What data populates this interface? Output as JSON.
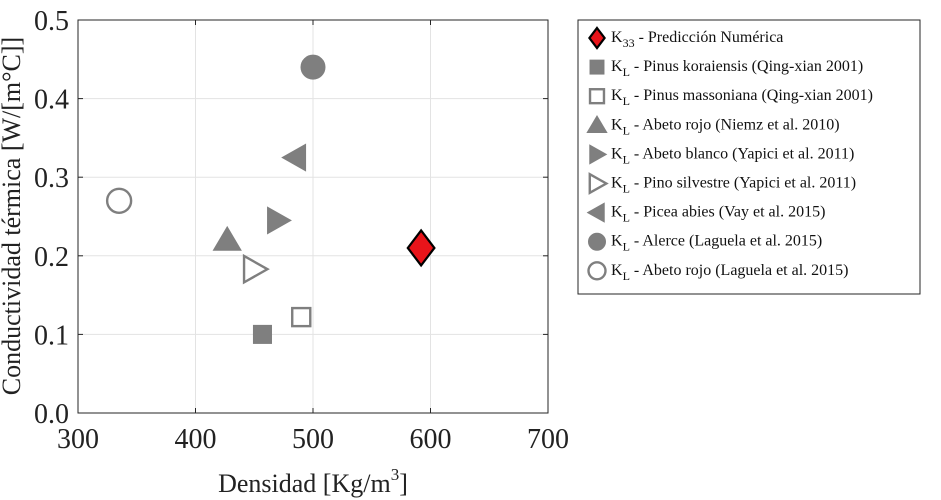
{
  "chart_data": {
    "type": "scatter",
    "xlabel_main": "Densidad [Kg/m",
    "xlabel_sup": "3",
    "xlabel_end": "]",
    "ylabel": "Conductividad térmica [W/[m°C]]",
    "xlim": [
      300,
      700
    ],
    "ylim": [
      0,
      0.5
    ],
    "xticks": [
      300,
      400,
      500,
      600,
      700
    ],
    "yticks": [
      0,
      0.1,
      0.2,
      0.3,
      0.4,
      0.5
    ],
    "xtick_labels": [
      "300",
      "400",
      "500",
      "600",
      "700"
    ],
    "ytick_labels": [
      "0.0",
      "0.1",
      "0.2",
      "0.3",
      "0.4",
      "0.5"
    ],
    "grid": true,
    "legend_position": "outside-right",
    "series": [
      {
        "key": "k33",
        "symbol": "K",
        "sub": "33",
        "label": " - Predicción Numérica",
        "marker": "diamond",
        "filled": true,
        "color": "#e8141a",
        "x": 592,
        "y": 0.21
      },
      {
        "key": "pinus-koraiensis",
        "symbol": "K",
        "sub": "L",
        "label": " - Pinus koraiensis (Qing-xian 2001)",
        "marker": "square",
        "filled": true,
        "color": "#7f7f7f",
        "x": 457,
        "y": 0.1
      },
      {
        "key": "pinus-massoniana",
        "symbol": "K",
        "sub": "L",
        "label": " - Pinus massoniana (Qing-xian 2001)",
        "marker": "square",
        "filled": false,
        "color": "#7f7f7f",
        "x": 490,
        "y": 0.122
      },
      {
        "key": "abeto-rojo-niemz",
        "symbol": "K",
        "sub": "L",
        "label": " - Abeto rojo (Niemz et al. 2010)",
        "marker": "triangle-up",
        "filled": true,
        "color": "#7f7f7f",
        "x": 427,
        "y": 0.22
      },
      {
        "key": "abeto-blanco",
        "symbol": "K",
        "sub": "L",
        "label": " - Abeto blanco (Yapici et al. 2011)",
        "marker": "triangle-right",
        "filled": true,
        "color": "#7f7f7f",
        "x": 470,
        "y": 0.245
      },
      {
        "key": "pino-silvestre",
        "symbol": "K",
        "sub": "L",
        "label": " - Pino silvestre (Yapici et al. 2011)",
        "marker": "triangle-right",
        "filled": false,
        "color": "#7f7f7f",
        "x": 450,
        "y": 0.183
      },
      {
        "key": "picea-abies",
        "symbol": "K",
        "sub": "L",
        "label": " - Picea abies (Vay et al. 2015)",
        "marker": "triangle-left",
        "filled": true,
        "color": "#7f7f7f",
        "x": 485,
        "y": 0.325
      },
      {
        "key": "alerce",
        "symbol": "K",
        "sub": "L",
        "label": " - Alerce (Laguela et al. 2015)",
        "marker": "circle",
        "filled": true,
        "color": "#7f7f7f",
        "x": 500,
        "y": 0.44
      },
      {
        "key": "abeto-rojo-laguela",
        "symbol": "K",
        "sub": "L",
        "label": " - Abeto rojo (Laguela et al. 2015)",
        "marker": "circle",
        "filled": false,
        "color": "#7f7f7f",
        "x": 335,
        "y": 0.27
      }
    ]
  }
}
